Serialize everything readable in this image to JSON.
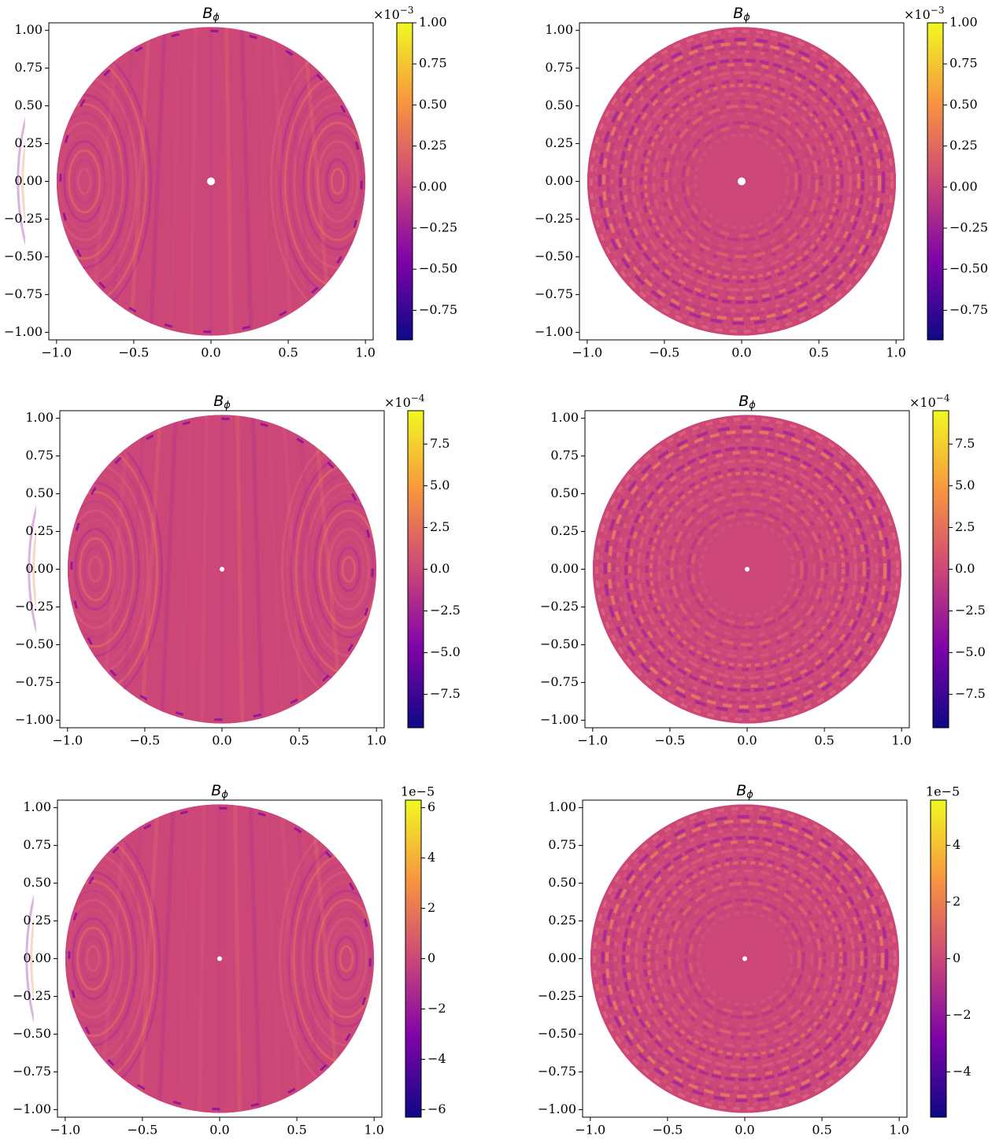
{
  "chart_data": [
    {
      "type": "heatmap",
      "title": [
        "B",
        "ϕ"
      ],
      "colormap": "plasma",
      "xlim": [
        -1.05,
        1.05
      ],
      "ylim": [
        -1.05,
        1.05
      ],
      "xticks": [
        {
          "value": -1,
          "label": "−1.0"
        },
        {
          "value": -0.5,
          "label": "−0.5"
        },
        {
          "value": 0,
          "label": "0.0"
        },
        0.5,
        {
          "value": 1,
          "label": "1.0"
        }
      ],
      "yticks": [
        {
          "value": -1,
          "label": "−1.00"
        },
        {
          "value": -0.75,
          "label": "−0.75"
        },
        {
          "value": -0.5,
          "label": "−0.50"
        },
        {
          "value": -0.25,
          "label": "−0.25"
        },
        {
          "value": 0,
          "label": "0.00"
        },
        0.25,
        {
          "value": 0.5,
          "label": "0.50"
        },
        0.75,
        {
          "value": 1,
          "label": "1.00"
        }
      ],
      "clim": [
        -0.93,
        1.0
      ],
      "cticks": [
        {
          "value": -0.75,
          "label": "−0.75"
        },
        {
          "value": -0.5,
          "label": "−0.50"
        },
        {
          "value": -0.25,
          "label": "−0.25"
        },
        {
          "value": 0,
          "label": "0.00"
        },
        0.25,
        {
          "value": 0.5,
          "label": "0.50"
        },
        0.75,
        {
          "value": 1,
          "label": "1.00"
        }
      ],
      "colorbar_offset": [
        "×10",
        "−3"
      ]
    },
    {
      "type": "heatmap",
      "title": [
        "B",
        "ϕ"
      ],
      "colormap": "plasma",
      "xlim": [
        -1.05,
        1.05
      ],
      "ylim": [
        -1.05,
        1.05
      ],
      "xticks": [
        {
          "value": -1,
          "label": "−1.0"
        },
        {
          "value": -0.5,
          "label": "−0.5"
        },
        {
          "value": 0,
          "label": "0.0"
        },
        0.5,
        {
          "value": 1,
          "label": "1.0"
        }
      ],
      "yticks": [
        {
          "value": -1,
          "label": "−1.00"
        },
        {
          "value": -0.75,
          "label": "−0.75"
        },
        {
          "value": -0.5,
          "label": "−0.50"
        },
        {
          "value": -0.25,
          "label": "−0.25"
        },
        {
          "value": 0,
          "label": "0.00"
        },
        0.25,
        {
          "value": 0.5,
          "label": "0.50"
        },
        0.75,
        {
          "value": 1,
          "label": "1.00"
        }
      ],
      "clim": [
        -0.93,
        1.0
      ],
      "cticks": [
        {
          "value": -0.75,
          "label": "−0.75"
        },
        {
          "value": -0.5,
          "label": "−0.50"
        },
        {
          "value": -0.25,
          "label": "−0.25"
        },
        {
          "value": 0,
          "label": "0.00"
        },
        0.25,
        {
          "value": 0.5,
          "label": "0.50"
        },
        0.75,
        {
          "value": 1,
          "label": "1.00"
        }
      ],
      "colorbar_offset": [
        "×10",
        "−3"
      ]
    },
    {
      "type": "heatmap",
      "title": [
        "B",
        "ϕ"
      ],
      "colormap": "plasma",
      "xlim": [
        -1.05,
        1.05
      ],
      "ylim": [
        -1.05,
        1.05
      ],
      "xticks": [
        {
          "value": -1,
          "label": "−1.0"
        },
        {
          "value": -0.5,
          "label": "−0.5"
        },
        {
          "value": 0,
          "label": "0.0"
        },
        0.5,
        {
          "value": 1,
          "label": "1.0"
        }
      ],
      "yticks": [
        {
          "value": -1,
          "label": "−1.00"
        },
        {
          "value": -0.75,
          "label": "−0.75"
        },
        {
          "value": -0.5,
          "label": "−0.50"
        },
        {
          "value": -0.25,
          "label": "−0.25"
        },
        {
          "value": 0,
          "label": "0.00"
        },
        0.25,
        {
          "value": 0.5,
          "label": "0.50"
        },
        0.75,
        {
          "value": 1,
          "label": "1.00"
        }
      ],
      "clim": [
        -9.5,
        9.5
      ],
      "cticks": [
        {
          "value": -7.5,
          "label": "−7.5"
        },
        {
          "value": -5,
          "label": "−5.0"
        },
        {
          "value": -2.5,
          "label": "−2.5"
        },
        {
          "value": 0,
          "label": "0.0"
        },
        2.5,
        {
          "value": 5,
          "label": "5.0"
        },
        7.5
      ],
      "colorbar_offset": [
        "×10",
        "−4"
      ]
    },
    {
      "type": "heatmap",
      "title": [
        "B",
        "ϕ"
      ],
      "colormap": "plasma",
      "xlim": [
        -1.05,
        1.05
      ],
      "ylim": [
        -1.05,
        1.05
      ],
      "xticks": [
        {
          "value": -1,
          "label": "−1.0"
        },
        {
          "value": -0.5,
          "label": "−0.5"
        },
        {
          "value": 0,
          "label": "0.0"
        },
        0.5,
        {
          "value": 1,
          "label": "1.0"
        }
      ],
      "yticks": [
        {
          "value": -1,
          "label": "−1.00"
        },
        {
          "value": -0.75,
          "label": "−0.75"
        },
        {
          "value": -0.5,
          "label": "−0.50"
        },
        {
          "value": -0.25,
          "label": "−0.25"
        },
        {
          "value": 0,
          "label": "0.00"
        },
        0.25,
        {
          "value": 0.5,
          "label": "0.50"
        },
        0.75,
        {
          "value": 1,
          "label": "1.00"
        }
      ],
      "clim": [
        -9.5,
        9.5
      ],
      "cticks": [
        {
          "value": -7.5,
          "label": "−7.5"
        },
        {
          "value": -5,
          "label": "−5.0"
        },
        {
          "value": -2.5,
          "label": "−2.5"
        },
        {
          "value": 0,
          "label": "0.0"
        },
        2.5,
        {
          "value": 5,
          "label": "5.0"
        },
        7.5
      ],
      "colorbar_offset": [
        "×10",
        "−4"
      ]
    },
    {
      "type": "heatmap",
      "title": [
        "B",
        "ϕ"
      ],
      "colormap": "plasma",
      "xlim": [
        -1.05,
        1.05
      ],
      "ylim": [
        -1.05,
        1.05
      ],
      "xticks": [
        {
          "value": -1,
          "label": "−1.0"
        },
        {
          "value": -0.5,
          "label": "−0.5"
        },
        {
          "value": 0,
          "label": "0.0"
        },
        0.5,
        {
          "value": 1,
          "label": "1.0"
        }
      ],
      "yticks": [
        {
          "value": -1,
          "label": "−1.00"
        },
        {
          "value": -0.75,
          "label": "−0.75"
        },
        {
          "value": -0.5,
          "label": "−0.50"
        },
        {
          "value": -0.25,
          "label": "−0.25"
        },
        {
          "value": 0,
          "label": "0.00"
        },
        0.25,
        {
          "value": 0.5,
          "label": "0.50"
        },
        0.75,
        {
          "value": 1,
          "label": "1.00"
        }
      ],
      "clim": [
        -6.3,
        6.3
      ],
      "cticks": [
        {
          "value": -6,
          "label": "−6"
        },
        {
          "value": -4,
          "label": "−4"
        },
        {
          "value": -2,
          "label": "−2"
        },
        0,
        2,
        4,
        6
      ],
      "colorbar_offset": "1e−5"
    },
    {
      "type": "heatmap",
      "title": [
        "B",
        "ϕ"
      ],
      "colormap": "plasma",
      "xlim": [
        -1.05,
        1.05
      ],
      "ylim": [
        -1.05,
        1.05
      ],
      "xticks": [
        {
          "value": -1,
          "label": "−1.0"
        },
        {
          "value": -0.5,
          "label": "−0.5"
        },
        {
          "value": 0,
          "label": "0.0"
        },
        0.5,
        {
          "value": 1,
          "label": "1.0"
        }
      ],
      "yticks": [
        {
          "value": -1,
          "label": "−1.00"
        },
        {
          "value": -0.75,
          "label": "−0.75"
        },
        {
          "value": -0.5,
          "label": "−0.50"
        },
        {
          "value": -0.25,
          "label": "−0.25"
        },
        {
          "value": 0,
          "label": "0.00"
        },
        0.25,
        {
          "value": 0.5,
          "label": "0.50"
        },
        0.75,
        {
          "value": 1,
          "label": "1.00"
        }
      ],
      "clim": [
        -5.6,
        5.6
      ],
      "cticks": [
        {
          "value": -4,
          "label": "−4"
        },
        {
          "value": -2,
          "label": "−2"
        },
        0,
        2,
        4
      ],
      "colorbar_offset": "1e−5"
    }
  ]
}
